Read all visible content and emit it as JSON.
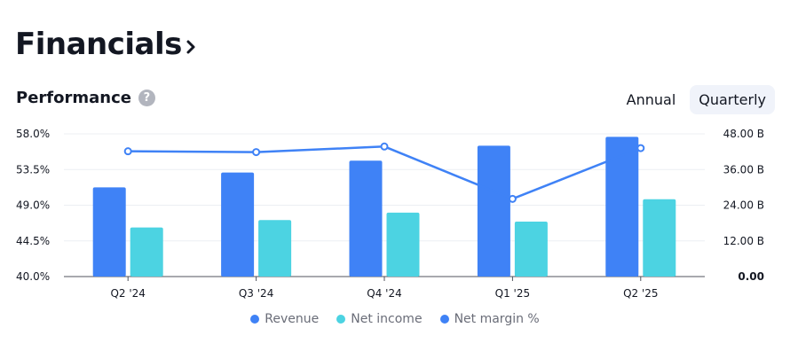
{
  "header": {
    "title": "Financials"
  },
  "performance": {
    "label": "Performance",
    "help": "?",
    "periods": [
      "Annual",
      "Quarterly"
    ],
    "active_period": "Quarterly"
  },
  "colors": {
    "revenue": "#3f82f6",
    "net_income": "#4cd3e2",
    "net_margin": "#3f82f6",
    "grid": "#eceff3",
    "axis_text": "#131722"
  },
  "chart_data": {
    "type": "bar",
    "categories": [
      "Q2 '24",
      "Q3 '24",
      "Q4 '24",
      "Q1 '25",
      "Q2 '25"
    ],
    "series": [
      {
        "name": "Revenue",
        "axis": "right",
        "values": [
          30.0,
          35.0,
          39.0,
          44.0,
          47.0
        ]
      },
      {
        "name": "Net income",
        "axis": "right",
        "values": [
          16.5,
          19.0,
          21.5,
          18.5,
          26.0
        ]
      },
      {
        "name": "Net margin %",
        "axis": "left",
        "type": "line",
        "values": [
          55.8,
          55.7,
          56.4,
          49.8,
          56.2
        ]
      }
    ],
    "left_axis": {
      "ylim": [
        40.0,
        58.0
      ],
      "ticks": [
        "58.0%",
        "53.5%",
        "49.0%",
        "44.5%",
        "40.0%"
      ]
    },
    "right_axis": {
      "ylim": [
        0,
        48
      ],
      "ticks": [
        "48.00 B",
        "36.00 B",
        "24.00 B",
        "12.00 B",
        "0.00"
      ]
    },
    "legend_position": "bottom",
    "grid": true
  }
}
